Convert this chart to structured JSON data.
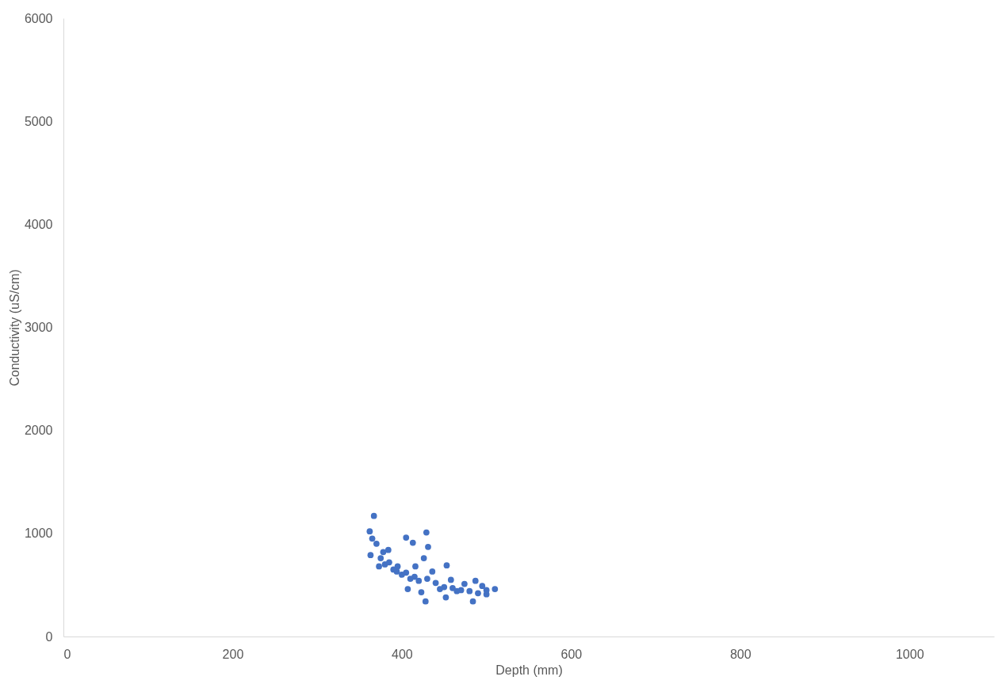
{
  "chart_data": {
    "type": "scatter",
    "xlabel": "Depth (mm)",
    "ylabel": "Conductivity (uS/cm)",
    "xlim": [
      0,
      1100
    ],
    "xticks": [
      0,
      200,
      400,
      600,
      800,
      1000
    ],
    "ylim": [
      0,
      6000
    ],
    "yticks": [
      0,
      1000,
      2000,
      3000,
      4000,
      5000,
      6000
    ],
    "grid": false,
    "marker": "circle",
    "series": [
      {
        "color": "#4472c4",
        "x": [
          367,
          362,
          365,
          363,
          373,
          384,
          394,
          407,
          416,
          405,
          413,
          429,
          431,
          426,
          423,
          428,
          436,
          453,
          458,
          452,
          474,
          487,
          484,
          495,
          510,
          500,
          380,
          390,
          400,
          410,
          420,
          440,
          450,
          460,
          470,
          480,
          490,
          375,
          385,
          395,
          405,
          415,
          430,
          445,
          465,
          500,
          370,
          378
        ],
        "values": [
          1170,
          1020,
          950,
          790,
          680,
          840,
          630,
          460,
          680,
          960,
          910,
          1010,
          870,
          760,
          430,
          340,
          630,
          690,
          550,
          380,
          510,
          540,
          340,
          490,
          460,
          410,
          700,
          650,
          600,
          560,
          540,
          520,
          480,
          470,
          450,
          440,
          420,
          760,
          720,
          680,
          620,
          580,
          560,
          460,
          440,
          450,
          900,
          820
        ]
      }
    ]
  }
}
